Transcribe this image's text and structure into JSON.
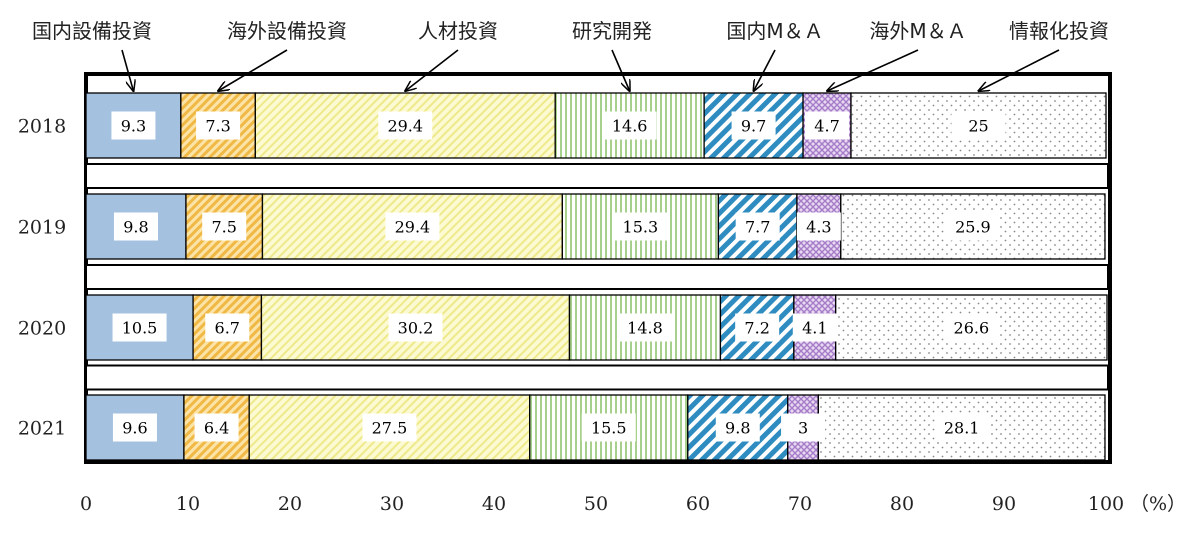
{
  "chart_data": {
    "type": "bar",
    "orientation": "horizontal",
    "stacked": true,
    "categories": [
      "2018",
      "2019",
      "2020",
      "2021"
    ],
    "series": [
      {
        "name": "国内設備投資",
        "values": [
          9.3,
          9.8,
          10.5,
          9.6
        ],
        "color": "#a4c2e0",
        "pattern": "solid"
      },
      {
        "name": "海外設備投資",
        "values": [
          7.3,
          7.5,
          6.7,
          6.4
        ],
        "color": "#f0b845",
        "pattern": "diagonal-dense"
      },
      {
        "name": "人材投資",
        "values": [
          29.4,
          29.4,
          30.2,
          27.5
        ],
        "color": "#f2ee8c",
        "pattern": "diagonal-light"
      },
      {
        "name": "研究開発",
        "values": [
          14.6,
          15.3,
          14.8,
          15.5
        ],
        "color": "#a8d08d",
        "pattern": "vertical"
      },
      {
        "name": "国内M＆Ａ",
        "values": [
          9.7,
          7.7,
          7.2,
          9.8
        ],
        "color": "#2e8cc0",
        "pattern": "diagonal-bold"
      },
      {
        "name": "海外M＆Ａ",
        "values": [
          4.7,
          4.3,
          4.1,
          3.0
        ],
        "color": "#a57cc8",
        "pattern": "crosshatch"
      },
      {
        "name": "情報化投資",
        "values": [
          25.0,
          25.9,
          26.6,
          28.1
        ],
        "color": "#a8a8a8",
        "pattern": "dots"
      }
    ],
    "xlim": [
      0,
      100
    ],
    "x_ticks": [
      "0",
      "10",
      "20",
      "30",
      "40",
      "50",
      "60",
      "70",
      "80",
      "90",
      "100"
    ],
    "x_unit": "（%）",
    "grid": false,
    "legend_position": "top, labels above the bars with arrows"
  }
}
